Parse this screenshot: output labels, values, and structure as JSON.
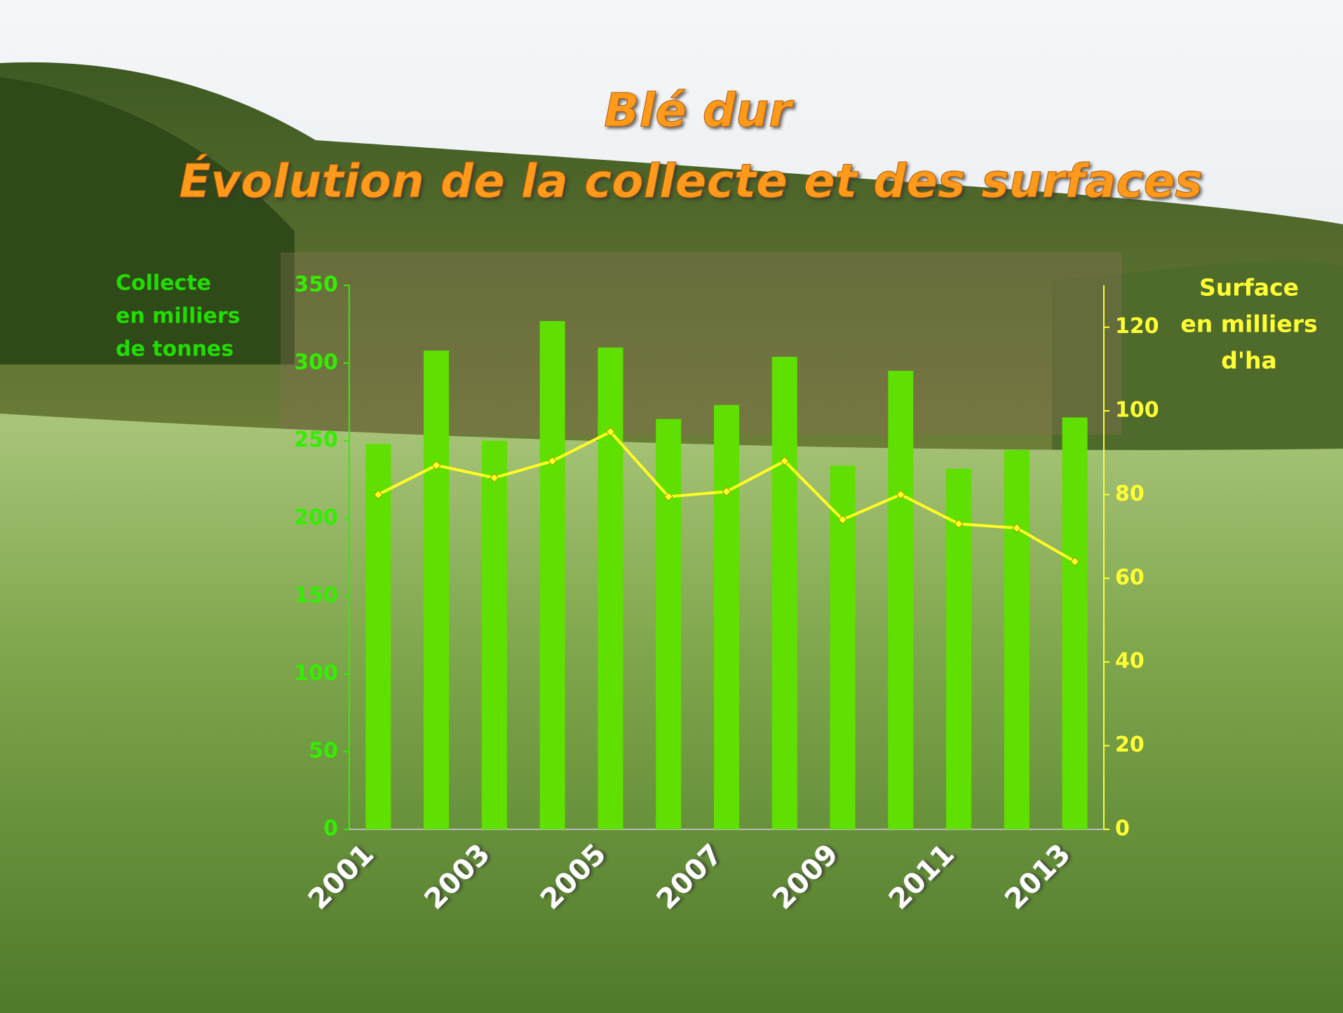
{
  "chart_data": {
    "type": "bar-line",
    "title": [
      "Blé dur",
      "Évolution de la collecte et des surfaces"
    ],
    "ylabel": [
      "Collecte",
      "en milliers",
      "de tonnes"
    ],
    "y2label": [
      "Surface",
      "en milliers",
      "d'ha"
    ],
    "categories": [
      "2001",
      null,
      "2003",
      null,
      "2005",
      null,
      "2007",
      null,
      "2009",
      null,
      "2011",
      null,
      "2013"
    ],
    "series": [
      {
        "type": "bar",
        "color": "#5fe000",
        "values": [
          248,
          308,
          250,
          327,
          310,
          264,
          273,
          304,
          234,
          295,
          232,
          244,
          265
        ]
      },
      {
        "type": "line",
        "axis": "y2",
        "color": "#ffff22",
        "values": [
          80,
          87,
          84,
          88,
          95,
          79.5,
          80.7,
          88,
          74,
          80,
          73,
          72,
          64
        ]
      }
    ],
    "ylim": [
      0,
      350
    ],
    "yticks": [
      0,
      50,
      100,
      150,
      200,
      250,
      300,
      350
    ],
    "y2lim": [
      0,
      130
    ],
    "y2ticks": [
      0,
      20,
      40,
      60,
      80,
      100,
      120
    ],
    "ycolor": "#33ee00",
    "y2color": "#ffff33"
  }
}
